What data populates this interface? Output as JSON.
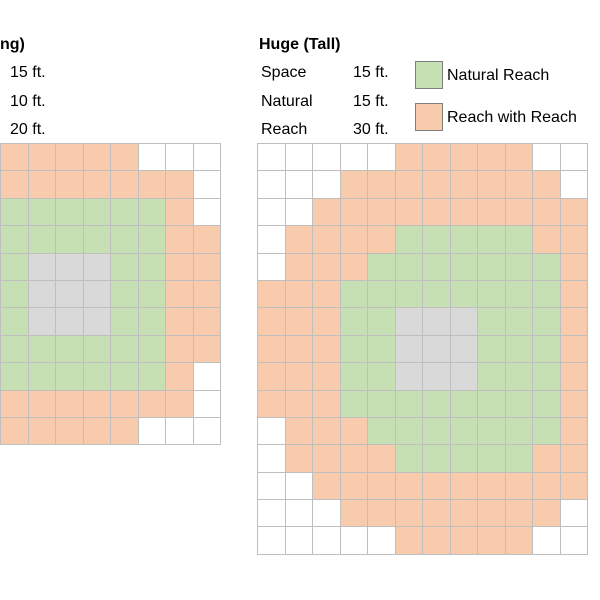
{
  "colors": {
    "empty": "#ffffff",
    "reach": "#f8cbad",
    "natural": "#c6e0b4",
    "creature": "#d9d9d9",
    "border": "#bfbfbf"
  },
  "left": {
    "title": "ng)",
    "values": [
      "15 ft.",
      "10 ft.",
      "20 ft."
    ],
    "grid": [
      "RRRRRWWW",
      "RRRRRRRW",
      "NNNNNNRW",
      "NNNNNNRR",
      "NCCCNNRR",
      "NCCCNNRR",
      "NCCCNNRR",
      "NNNNNNRR",
      "NNNNNNRW",
      "RRRRRRRW",
      "RRRRRWWW"
    ]
  },
  "right": {
    "title": "Huge (Tall)",
    "labels": [
      "Space",
      "Natural",
      "Reach"
    ],
    "values": [
      "15 ft.",
      "15 ft.",
      "30 ft."
    ],
    "grid": [
      "WWWWWRRRRRWW",
      "WWWRRRRRRRRW",
      "WWRRRRRRRRRR",
      "WRRRRNNNNNRR",
      "WRRRNNNNNNNR",
      "RRRNNNNNNNNR",
      "RRRNNCCCNNNR",
      "RRRNNCCCNNNR",
      "RRRNNCCCNNNR",
      "RRRNNNNNNNNR",
      "WRRRNNNNNNNR",
      "WRRRRNNNNNRR",
      "WWRRRRRRRRRR",
      "WWWRRRRRRRRW",
      "WWWWWRRRRRWW"
    ]
  },
  "legend": {
    "natural_label": "Natural Reach",
    "reach_label": "Reach with Reach"
  }
}
